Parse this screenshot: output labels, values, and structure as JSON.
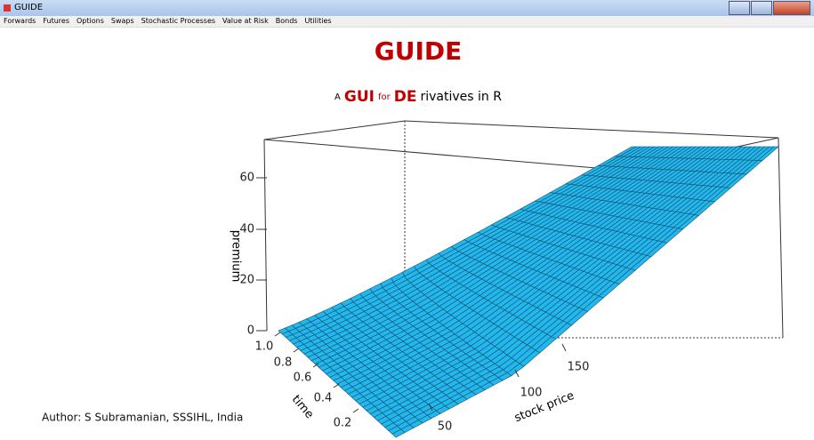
{
  "window": {
    "title": "GUIDE"
  },
  "menu": [
    "Forwards",
    "Futures",
    "Options",
    "Swaps",
    "Stochastic Processes",
    "Value at Risk",
    "Bonds",
    "Utilities"
  ],
  "header": {
    "title": "GUIDE",
    "subtitle": [
      {
        "text": "A",
        "style": "small"
      },
      {
        "text": "GUI",
        "style": "red"
      },
      {
        "text": "for",
        "style": "small-red"
      },
      {
        "text": "DE",
        "style": "red"
      },
      {
        "text": "rivatives in R",
        "style": "plain"
      }
    ]
  },
  "plot": {
    "z_label": "premium",
    "zticks": [
      0,
      20,
      40,
      60
    ],
    "time_label": "time",
    "time_ticks": [
      {
        "value": 1,
        "label": "1.0"
      },
      0.8,
      0.6,
      0.4,
      0.2
    ],
    "stock_label": "stock price",
    "stock_ticks": [
      50,
      100,
      150
    ]
  },
  "footer": {
    "author": "Author: S Subramanian, SSSIHL, India"
  }
}
